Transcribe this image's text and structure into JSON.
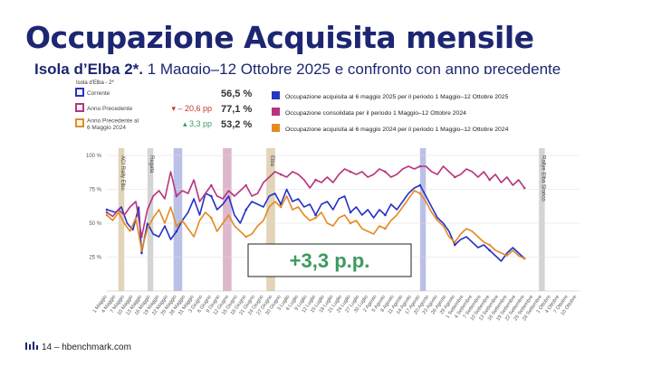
{
  "slide": {
    "title": "Occupazione Acquisita mensile",
    "subtitle_bold": "Isola d’Elba 2*,",
    "subtitle_rest": " 1 Maggio–12 Ottobre 2025 e confronto con anno precedente",
    "footer": "14 – hbenchmark.com"
  },
  "colors": {
    "title": "#1d2672",
    "corrente": "#2433c8",
    "anno_precedente": "#b8357e",
    "anno_precedente_6m": "#e58a22",
    "delta_negative": "#c0392b",
    "delta_positive": "#3c9a5f",
    "callout": "#3c9a5f"
  },
  "chart_data": {
    "type": "line",
    "title": "Isola d'Elba - 2*",
    "ylim": [
      0,
      100
    ],
    "y_ticks": [
      "25 %",
      "50 %",
      "75 %",
      "100 %"
    ],
    "legend_left": [
      {
        "name": "Corrente",
        "value": "56,5 %",
        "delta": ""
      },
      {
        "name": "Anno Precedente",
        "value": "77,1 %",
        "delta": "▾ – 20,6 pp"
      },
      {
        "name": "Anno Precedente al 6 Maggio 2024",
        "value": "53,2 %",
        "delta": "▴ 3,3 pp"
      }
    ],
    "legend_right": [
      "Occupazione acquisita al 6 maggio 2025 per il periodo 1 Maggio–12 Ottobre 2025",
      "Occupazione consolidata per il periodo 1 Maggio–12 Ottobre 2024",
      "Occupazione acquisita al 6 maggio 2024 per il periodo 1 Maggio–12 Ottobre 2024"
    ],
    "x_ticks": [
      "1 Maggio",
      "4 Maggio",
      "7 Maggio",
      "10 Maggio",
      "13 Maggio",
      "16 Maggio",
      "19 Maggio",
      "22 Maggio",
      "25 Maggio",
      "28 Maggio",
      "31 Maggio",
      "3 Giugno",
      "6 Giugno",
      "9 Giugno",
      "12 Giugno",
      "15 Giugno",
      "18 Giugno",
      "21 Giugno",
      "24 Giugno",
      "27 Giugno",
      "30 Giugno",
      "3 Luglio",
      "6 Luglio",
      "9 Luglio",
      "12 Luglio",
      "15 Luglio",
      "18 Luglio",
      "21 Luglio",
      "24 Luglio",
      "27 Luglio",
      "30 Luglio",
      "2 Agosto",
      "5 Agosto",
      "8 Agosto",
      "11 Agosto",
      "14 Agosto",
      "17 Agosto",
      "20 Agosto",
      "23 Agosto",
      "26 Agosto",
      "29 Agosto",
      "1 Settembre",
      "4 Settembre",
      "7 Settembre",
      "10 Settembre",
      "13 Settembre",
      "16 Settembre",
      "19 Settembre",
      "22 Settembre",
      "25 Settembre",
      "28 Settembre",
      "1 Ottobre",
      "4 Ottobre",
      "7 Ottobre",
      "10 Ottobre"
    ],
    "events": [
      {
        "label": "ACI Rally Elba",
        "start": 4,
        "end": 6,
        "color": "#d9c9a6"
      },
      {
        "label": "Regata",
        "start": 14,
        "end": 16,
        "color": "#c9c9c9"
      },
      {
        "label": "",
        "start": 23,
        "end": 26,
        "color": "#aab0e0"
      },
      {
        "label": "",
        "start": 40,
        "end": 43,
        "color": "#d5a6c1"
      },
      {
        "label": "Elba",
        "start": 55,
        "end": 58,
        "color": "#d9c9a6"
      },
      {
        "label": "",
        "start": 108,
        "end": 110,
        "color": "#aab0e0"
      },
      {
        "label": "Rallye Elba Storico",
        "start": 149,
        "end": 151,
        "color": "#c9c9c9"
      }
    ],
    "series": [
      {
        "name": "Corrente",
        "color": "#2433c8",
        "points": [
          [
            0,
            60
          ],
          [
            3,
            58
          ],
          [
            5,
            62
          ],
          [
            7,
            50
          ],
          [
            9,
            45
          ],
          [
            11,
            62
          ],
          [
            12,
            28
          ],
          [
            14,
            50
          ],
          [
            16,
            42
          ],
          [
            18,
            40
          ],
          [
            20,
            48
          ],
          [
            22,
            38
          ],
          [
            24,
            44
          ],
          [
            26,
            52
          ],
          [
            28,
            58
          ],
          [
            30,
            68
          ],
          [
            32,
            56
          ],
          [
            34,
            72
          ],
          [
            36,
            70
          ],
          [
            38,
            60
          ],
          [
            40,
            64
          ],
          [
            42,
            70
          ],
          [
            44,
            56
          ],
          [
            46,
            50
          ],
          [
            48,
            60
          ],
          [
            50,
            66
          ],
          [
            52,
            64
          ],
          [
            54,
            62
          ],
          [
            56,
            70
          ],
          [
            58,
            72
          ],
          [
            60,
            64
          ],
          [
            62,
            75
          ],
          [
            64,
            66
          ],
          [
            66,
            68
          ],
          [
            68,
            62
          ],
          [
            70,
            64
          ],
          [
            72,
            56
          ],
          [
            74,
            64
          ],
          [
            76,
            66
          ],
          [
            78,
            60
          ],
          [
            80,
            68
          ],
          [
            82,
            70
          ],
          [
            84,
            58
          ],
          [
            86,
            62
          ],
          [
            88,
            56
          ],
          [
            90,
            60
          ],
          [
            92,
            54
          ],
          [
            94,
            60
          ],
          [
            96,
            56
          ],
          [
            98,
            64
          ],
          [
            100,
            60
          ],
          [
            102,
            66
          ],
          [
            104,
            72
          ],
          [
            106,
            76
          ],
          [
            108,
            78
          ],
          [
            110,
            70
          ],
          [
            112,
            62
          ],
          [
            114,
            54
          ],
          [
            116,
            50
          ],
          [
            118,
            44
          ],
          [
            120,
            34
          ],
          [
            122,
            38
          ],
          [
            124,
            40
          ],
          [
            126,
            36
          ],
          [
            128,
            32
          ],
          [
            130,
            34
          ],
          [
            132,
            30
          ],
          [
            134,
            26
          ],
          [
            136,
            22
          ],
          [
            138,
            28
          ],
          [
            140,
            32
          ],
          [
            142,
            28
          ],
          [
            144,
            24
          ]
        ]
      },
      {
        "name": "Anno Precedente",
        "color": "#b8357e",
        "points": [
          [
            0,
            58
          ],
          [
            2,
            55
          ],
          [
            4,
            60
          ],
          [
            6,
            56
          ],
          [
            8,
            62
          ],
          [
            10,
            66
          ],
          [
            12,
            40
          ],
          [
            14,
            60
          ],
          [
            16,
            70
          ],
          [
            18,
            74
          ],
          [
            20,
            68
          ],
          [
            22,
            88
          ],
          [
            24,
            70
          ],
          [
            26,
            74
          ],
          [
            28,
            72
          ],
          [
            30,
            82
          ],
          [
            32,
            66
          ],
          [
            34,
            72
          ],
          [
            36,
            78
          ],
          [
            38,
            70
          ],
          [
            40,
            68
          ],
          [
            42,
            74
          ],
          [
            44,
            70
          ],
          [
            46,
            74
          ],
          [
            48,
            78
          ],
          [
            50,
            70
          ],
          [
            52,
            72
          ],
          [
            54,
            80
          ],
          [
            56,
            84
          ],
          [
            58,
            88
          ],
          [
            60,
            86
          ],
          [
            62,
            84
          ],
          [
            64,
            88
          ],
          [
            66,
            86
          ],
          [
            68,
            82
          ],
          [
            70,
            76
          ],
          [
            72,
            82
          ],
          [
            74,
            80
          ],
          [
            76,
            84
          ],
          [
            78,
            80
          ],
          [
            80,
            86
          ],
          [
            82,
            90
          ],
          [
            84,
            88
          ],
          [
            86,
            86
          ],
          [
            88,
            88
          ],
          [
            90,
            84
          ],
          [
            92,
            86
          ],
          [
            94,
            90
          ],
          [
            96,
            88
          ],
          [
            98,
            84
          ],
          [
            100,
            86
          ],
          [
            102,
            90
          ],
          [
            104,
            92
          ],
          [
            106,
            90
          ],
          [
            108,
            92
          ],
          [
            110,
            92
          ],
          [
            112,
            88
          ],
          [
            114,
            86
          ],
          [
            116,
            92
          ],
          [
            118,
            88
          ],
          [
            120,
            84
          ],
          [
            122,
            86
          ],
          [
            124,
            90
          ],
          [
            126,
            88
          ],
          [
            128,
            84
          ],
          [
            130,
            88
          ],
          [
            132,
            82
          ],
          [
            134,
            86
          ],
          [
            136,
            80
          ],
          [
            138,
            84
          ],
          [
            140,
            78
          ],
          [
            142,
            82
          ],
          [
            144,
            76
          ]
        ]
      },
      {
        "name": "Anno Precedente al 6 Maggio 2024",
        "color": "#e58a22",
        "points": [
          [
            0,
            56
          ],
          [
            2,
            52
          ],
          [
            4,
            58
          ],
          [
            6,
            50
          ],
          [
            8,
            44
          ],
          [
            10,
            54
          ],
          [
            12,
            30
          ],
          [
            14,
            46
          ],
          [
            16,
            54
          ],
          [
            18,
            60
          ],
          [
            20,
            50
          ],
          [
            22,
            62
          ],
          [
            24,
            48
          ],
          [
            26,
            52
          ],
          [
            28,
            46
          ],
          [
            30,
            40
          ],
          [
            32,
            52
          ],
          [
            34,
            58
          ],
          [
            36,
            54
          ],
          [
            38,
            44
          ],
          [
            40,
            50
          ],
          [
            42,
            56
          ],
          [
            44,
            48
          ],
          [
            46,
            44
          ],
          [
            48,
            40
          ],
          [
            50,
            42
          ],
          [
            52,
            48
          ],
          [
            54,
            52
          ],
          [
            56,
            62
          ],
          [
            58,
            66
          ],
          [
            60,
            62
          ],
          [
            62,
            70
          ],
          [
            64,
            60
          ],
          [
            66,
            62
          ],
          [
            68,
            56
          ],
          [
            70,
            52
          ],
          [
            72,
            54
          ],
          [
            74,
            58
          ],
          [
            76,
            50
          ],
          [
            78,
            48
          ],
          [
            80,
            54
          ],
          [
            82,
            56
          ],
          [
            84,
            50
          ],
          [
            86,
            52
          ],
          [
            88,
            46
          ],
          [
            90,
            44
          ],
          [
            92,
            42
          ],
          [
            94,
            48
          ],
          [
            96,
            46
          ],
          [
            98,
            52
          ],
          [
            100,
            56
          ],
          [
            102,
            62
          ],
          [
            104,
            68
          ],
          [
            106,
            74
          ],
          [
            108,
            72
          ],
          [
            110,
            66
          ],
          [
            112,
            58
          ],
          [
            114,
            52
          ],
          [
            116,
            48
          ],
          [
            118,
            40
          ],
          [
            120,
            36
          ],
          [
            122,
            42
          ],
          [
            124,
            46
          ],
          [
            126,
            44
          ],
          [
            128,
            40
          ],
          [
            130,
            36
          ],
          [
            132,
            34
          ],
          [
            134,
            30
          ],
          [
            136,
            28
          ],
          [
            138,
            26
          ],
          [
            140,
            30
          ],
          [
            142,
            26
          ],
          [
            144,
            24
          ]
        ]
      }
    ],
    "callout": "+3,3 p.p."
  }
}
